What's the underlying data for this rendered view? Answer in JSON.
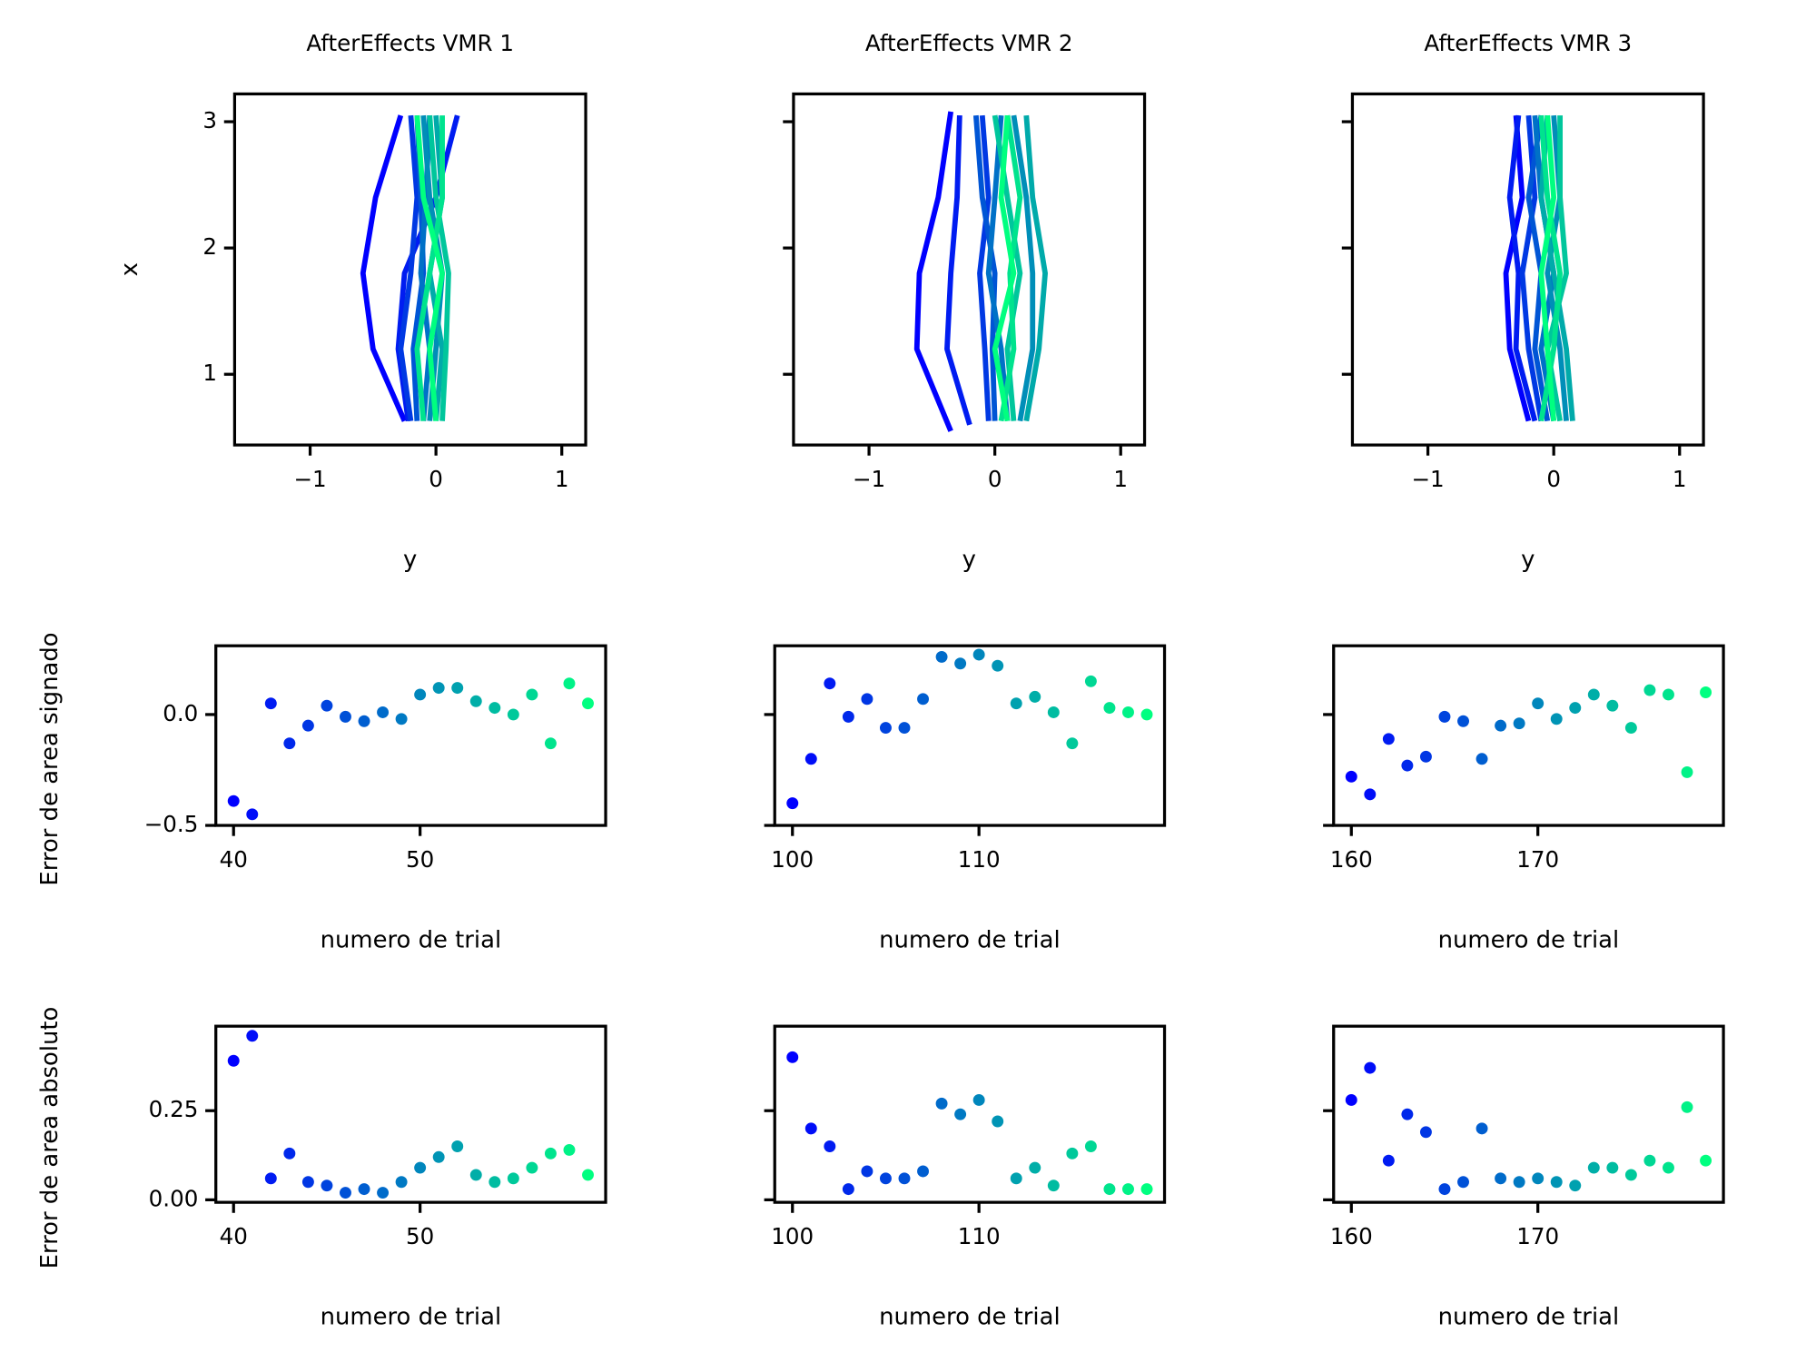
{
  "chart_data": [
    {
      "type": "line",
      "title": "AfterEffects VMR 1",
      "xlabel": "y",
      "ylabel": "x",
      "xlim": [
        -1.6,
        1.19
      ],
      "ylim": [
        0.44,
        3.22
      ],
      "xticks": [
        {
          "value": -1,
          "label": "−1"
        },
        0,
        1
      ],
      "yticks": [
        1,
        2,
        3
      ],
      "colormap": [
        "#0000ff",
        "#00ff80"
      ],
      "series": [
        {
          "x": [
            -0.25,
            -0.5,
            -0.58,
            -0.48,
            -0.28
          ],
          "values": [
            0.63,
            1.2,
            1.8,
            2.4,
            3.05
          ]
        },
        {
          "x": [
            -0.22,
            -0.3,
            -0.25,
            0.0,
            0.17
          ],
          "values": [
            0.63,
            1.2,
            1.8,
            2.4,
            3.05
          ]
        },
        {
          "x": [
            -0.2,
            -0.28,
            -0.2,
            -0.15,
            -0.2
          ],
          "values": [
            0.63,
            1.2,
            1.8,
            2.4,
            3.05
          ]
        },
        {
          "x": [
            -0.15,
            -0.18,
            -0.1,
            -0.12,
            -0.15
          ],
          "values": [
            0.63,
            1.2,
            1.8,
            2.4,
            3.05
          ]
        },
        {
          "x": [
            -0.1,
            -0.05,
            -0.12,
            -0.08,
            -0.05
          ],
          "values": [
            0.63,
            1.2,
            1.8,
            2.4,
            3.05
          ]
        },
        {
          "x": [
            -0.05,
            0.0,
            0.05,
            -0.05,
            -0.1
          ],
          "values": [
            0.63,
            1.2,
            1.8,
            2.4,
            3.05
          ]
        },
        {
          "x": [
            0.0,
            0.05,
            -0.05,
            0.05,
            0.0
          ],
          "values": [
            0.63,
            1.2,
            1.8,
            2.4,
            3.05
          ]
        },
        {
          "x": [
            0.05,
            0.08,
            0.1,
            0.0,
            -0.05
          ],
          "values": [
            0.63,
            1.2,
            1.8,
            2.4,
            3.05
          ]
        },
        {
          "x": [
            -0.1,
            -0.15,
            -0.05,
            0.05,
            0.05
          ],
          "values": [
            0.63,
            1.2,
            1.8,
            2.4,
            3.05
          ]
        },
        {
          "x": [
            0.0,
            -0.05,
            0.05,
            -0.1,
            -0.15
          ],
          "values": [
            0.63,
            1.2,
            1.8,
            2.4,
            3.05
          ]
        }
      ]
    },
    {
      "type": "line",
      "title": "AfterEffects VMR 2",
      "xlabel": "y",
      "xlim": [
        -1.6,
        1.19
      ],
      "ylim": [
        0.44,
        3.22
      ],
      "xticks": [
        {
          "value": -1,
          "label": "−1"
        },
        0,
        1
      ],
      "yticks": [
        1,
        2,
        3
      ],
      "yticklabels": false,
      "colormap": [
        "#0000ff",
        "#00ff80"
      ],
      "series": [
        {
          "x": [
            -0.35,
            -0.62,
            -0.6,
            -0.45,
            -0.35
          ],
          "values": [
            0.55,
            1.2,
            1.8,
            2.4,
            3.08
          ]
        },
        {
          "x": [
            -0.2,
            -0.38,
            -0.35,
            -0.3,
            -0.28
          ],
          "values": [
            0.6,
            1.2,
            1.8,
            2.4,
            3.05
          ]
        },
        {
          "x": [
            -0.05,
            -0.08,
            -0.12,
            -0.05,
            -0.1
          ],
          "values": [
            0.63,
            1.2,
            1.8,
            2.4,
            3.05
          ]
        },
        {
          "x": [
            0.0,
            -0.02,
            0.0,
            -0.1,
            -0.15
          ],
          "values": [
            0.63,
            1.2,
            1.8,
            2.4,
            3.05
          ]
        },
        {
          "x": [
            0.1,
            0.05,
            -0.05,
            0.0,
            0.05
          ],
          "values": [
            0.63,
            1.2,
            1.8,
            2.4,
            3.05
          ]
        },
        {
          "x": [
            0.2,
            0.3,
            0.3,
            0.25,
            0.15
          ],
          "values": [
            0.63,
            1.2,
            1.8,
            2.4,
            3.05
          ]
        },
        {
          "x": [
            0.25,
            0.35,
            0.4,
            0.3,
            0.25
          ],
          "values": [
            0.63,
            1.2,
            1.8,
            2.4,
            3.05
          ]
        },
        {
          "x": [
            0.15,
            0.1,
            0.2,
            0.1,
            0.0
          ],
          "values": [
            0.63,
            1.2,
            1.8,
            2.4,
            3.05
          ]
        },
        {
          "x": [
            0.05,
            0.15,
            0.12,
            0.2,
            0.1
          ],
          "values": [
            0.63,
            1.2,
            1.8,
            2.4,
            3.05
          ]
        },
        {
          "x": [
            0.1,
            0.0,
            0.15,
            0.05,
            0.1
          ],
          "values": [
            0.63,
            1.2,
            1.8,
            2.4,
            3.05
          ]
        }
      ]
    },
    {
      "type": "line",
      "title": "AfterEffects VMR 3",
      "xlabel": "y",
      "xlim": [
        -1.6,
        1.19
      ],
      "ylim": [
        0.44,
        3.22
      ],
      "xticks": [
        {
          "value": -1,
          "label": "−1"
        },
        0,
        1
      ],
      "yticks": [
        1,
        2,
        3
      ],
      "yticklabels": false,
      "colormap": [
        "#0000ff",
        "#00ff80"
      ],
      "series": [
        {
          "x": [
            -0.2,
            -0.35,
            -0.38,
            -0.25,
            -0.3
          ],
          "values": [
            0.63,
            1.2,
            1.8,
            2.4,
            3.05
          ]
        },
        {
          "x": [
            -0.15,
            -0.3,
            -0.28,
            -0.35,
            -0.28
          ],
          "values": [
            0.63,
            1.2,
            1.8,
            2.4,
            3.05
          ]
        },
        {
          "x": [
            -0.1,
            -0.2,
            -0.25,
            -0.15,
            -0.2
          ],
          "values": [
            0.63,
            1.2,
            1.8,
            2.4,
            3.05
          ]
        },
        {
          "x": [
            -0.05,
            -0.15,
            -0.1,
            -0.2,
            -0.1
          ],
          "values": [
            0.63,
            1.2,
            1.8,
            2.4,
            3.05
          ]
        },
        {
          "x": [
            0.0,
            -0.1,
            0.0,
            -0.1,
            -0.15
          ],
          "values": [
            0.63,
            1.2,
            1.8,
            2.4,
            3.05
          ]
        },
        {
          "x": [
            0.1,
            0.05,
            -0.05,
            0.05,
            0.0
          ],
          "values": [
            0.63,
            1.2,
            1.8,
            2.4,
            3.05
          ]
        },
        {
          "x": [
            0.15,
            0.1,
            0.0,
            -0.1,
            -0.05
          ],
          "values": [
            0.63,
            1.2,
            1.8,
            2.4,
            3.05
          ]
        },
        {
          "x": [
            0.05,
            -0.05,
            0.1,
            0.05,
            0.05
          ],
          "values": [
            0.63,
            1.2,
            1.8,
            2.4,
            3.05
          ]
        },
        {
          "x": [
            -0.1,
            0.0,
            0.05,
            -0.05,
            -0.1
          ],
          "values": [
            0.63,
            1.2,
            1.8,
            2.4,
            3.05
          ]
        },
        {
          "x": [
            0.0,
            -0.05,
            -0.1,
            0.0,
            -0.05
          ],
          "values": [
            0.63,
            1.2,
            1.8,
            2.4,
            3.05
          ]
        }
      ]
    },
    {
      "type": "scatter",
      "xlabel": "numero de trial",
      "ylabel": "Error de area signado",
      "xlim": [
        39.05,
        59.95
      ],
      "ylim": [
        -0.5,
        0.31
      ],
      "xticks": [
        40,
        50
      ],
      "yticks": [
        {
          "value": -0.5,
          "label": "−0.5"
        },
        {
          "value": 0,
          "label": "0.0"
        }
      ],
      "colormap": [
        "#0000ff",
        "#00ff80"
      ],
      "x": [
        40,
        41,
        42,
        43,
        44,
        45,
        46,
        47,
        48,
        49,
        50,
        51,
        52,
        53,
        54,
        55,
        56,
        57,
        58,
        59
      ],
      "values": [
        -0.39,
        -0.45,
        0.05,
        -0.13,
        -0.05,
        0.04,
        -0.01,
        -0.03,
        0.01,
        -0.02,
        0.09,
        0.12,
        0.12,
        0.06,
        0.03,
        0.0,
        0.09,
        -0.13,
        0.14,
        0.05
      ]
    },
    {
      "type": "scatter",
      "xlabel": "numero de trial",
      "xlim": [
        99.05,
        119.95
      ],
      "ylim": [
        -0.5,
        0.31
      ],
      "xticks": [
        100,
        110
      ],
      "yticks": [
        -0.5,
        0
      ],
      "yticklabels": false,
      "colormap": [
        "#0000ff",
        "#00ff80"
      ],
      "x": [
        100,
        101,
        102,
        103,
        104,
        105,
        106,
        107,
        108,
        109,
        110,
        111,
        112,
        113,
        114,
        115,
        116,
        117,
        118,
        119
      ],
      "values": [
        -0.4,
        -0.2,
        0.14,
        -0.01,
        0.07,
        -0.06,
        -0.06,
        0.07,
        0.26,
        0.23,
        0.27,
        0.22,
        0.05,
        0.08,
        0.01,
        -0.13,
        0.15,
        0.03,
        0.01,
        0.0
      ]
    },
    {
      "type": "scatter",
      "xlabel": "numero de trial",
      "xlim": [
        159.05,
        179.95
      ],
      "ylim": [
        -0.5,
        0.31
      ],
      "xticks": [
        160,
        170
      ],
      "yticks": [
        -0.5,
        0
      ],
      "yticklabels": false,
      "colormap": [
        "#0000ff",
        "#00ff80"
      ],
      "x": [
        160,
        161,
        162,
        163,
        164,
        165,
        166,
        167,
        168,
        169,
        170,
        171,
        172,
        173,
        174,
        175,
        176,
        177,
        178,
        179
      ],
      "values": [
        -0.28,
        -0.36,
        -0.11,
        -0.23,
        -0.19,
        -0.01,
        -0.03,
        -0.2,
        -0.05,
        -0.04,
        0.05,
        -0.02,
        0.03,
        0.09,
        0.04,
        -0.06,
        0.11,
        0.09,
        -0.26,
        0.1
      ]
    },
    {
      "type": "scatter",
      "xlabel": "numero de trial",
      "ylabel": "Error de area absoluto",
      "xlim": [
        39.05,
        59.95
      ],
      "ylim": [
        -0.007,
        0.487
      ],
      "xticks": [
        40,
        50
      ],
      "yticks": [
        {
          "value": 0,
          "label": "0.00"
        },
        0.25
      ],
      "colormap": [
        "#0000ff",
        "#00ff80"
      ],
      "x": [
        40,
        41,
        42,
        43,
        44,
        45,
        46,
        47,
        48,
        49,
        50,
        51,
        52,
        53,
        54,
        55,
        56,
        57,
        58,
        59
      ],
      "values": [
        0.39,
        0.46,
        0.06,
        0.13,
        0.05,
        0.04,
        0.02,
        0.03,
        0.02,
        0.05,
        0.09,
        0.12,
        0.15,
        0.07,
        0.05,
        0.06,
        0.09,
        0.13,
        0.14,
        0.07
      ]
    },
    {
      "type": "scatter",
      "xlabel": "numero de trial",
      "xlim": [
        99.05,
        119.95
      ],
      "ylim": [
        -0.007,
        0.487
      ],
      "xticks": [
        100,
        110
      ],
      "yticks": [
        0,
        0.25
      ],
      "yticklabels": false,
      "colormap": [
        "#0000ff",
        "#00ff80"
      ],
      "x": [
        100,
        101,
        102,
        103,
        104,
        105,
        106,
        107,
        108,
        109,
        110,
        111,
        112,
        113,
        114,
        115,
        116,
        117,
        118,
        119
      ],
      "values": [
        0.4,
        0.2,
        0.15,
        0.03,
        0.08,
        0.06,
        0.06,
        0.08,
        0.27,
        0.24,
        0.28,
        0.22,
        0.06,
        0.09,
        0.04,
        0.13,
        0.15,
        0.03,
        0.03,
        0.03
      ]
    },
    {
      "type": "scatter",
      "xlabel": "numero de trial",
      "xlim": [
        159.05,
        179.95
      ],
      "ylim": [
        -0.007,
        0.487
      ],
      "xticks": [
        160,
        170
      ],
      "yticks": [
        0,
        0.25
      ],
      "yticklabels": false,
      "colormap": [
        "#0000ff",
        "#00ff80"
      ],
      "x": [
        160,
        161,
        162,
        163,
        164,
        165,
        166,
        167,
        168,
        169,
        170,
        171,
        172,
        173,
        174,
        175,
        176,
        177,
        178,
        179
      ],
      "values": [
        0.28,
        0.37,
        0.11,
        0.24,
        0.19,
        0.03,
        0.05,
        0.2,
        0.06,
        0.05,
        0.06,
        0.05,
        0.04,
        0.09,
        0.09,
        0.07,
        0.11,
        0.09,
        0.26,
        0.11
      ]
    }
  ]
}
